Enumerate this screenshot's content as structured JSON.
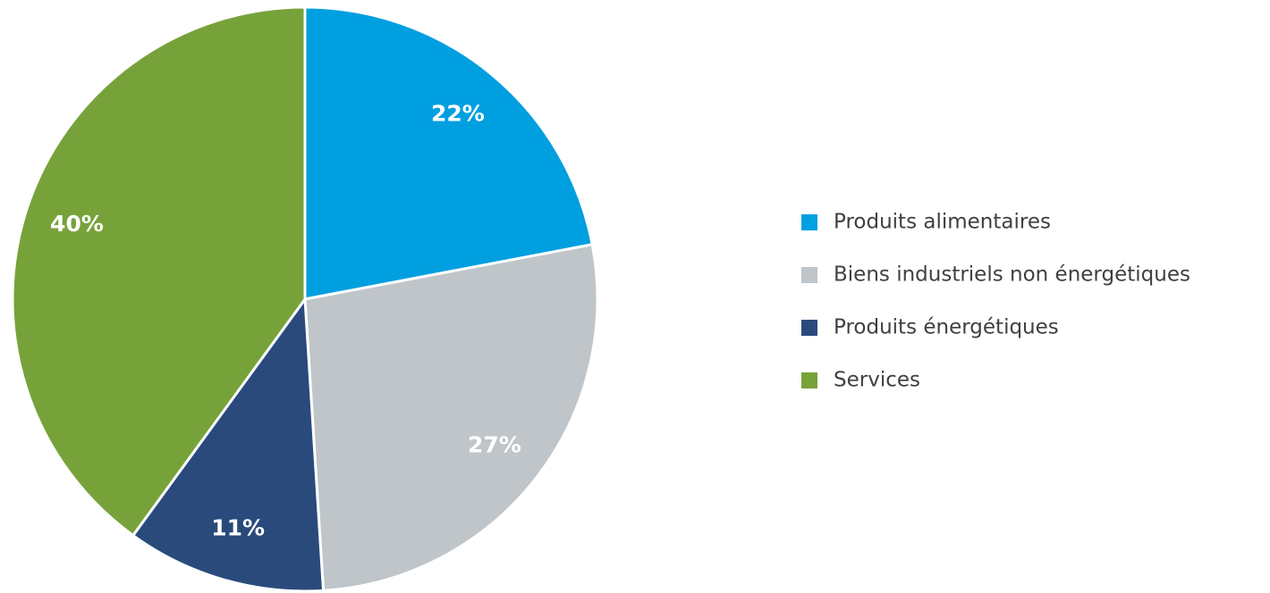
{
  "chart_data": {
    "type": "pie",
    "categories": [
      "Produits alimentaires",
      "Biens industriels non énergétiques",
      "Produits énergétiques",
      "Services"
    ],
    "values": [
      22,
      27,
      11,
      40
    ],
    "value_labels": [
      "22%",
      "27%",
      "11%",
      "40%"
    ],
    "colors": [
      "#009fe0",
      "#bfc5c9",
      "#2a4a7c",
      "#77a23a"
    ],
    "legend": "right"
  }
}
